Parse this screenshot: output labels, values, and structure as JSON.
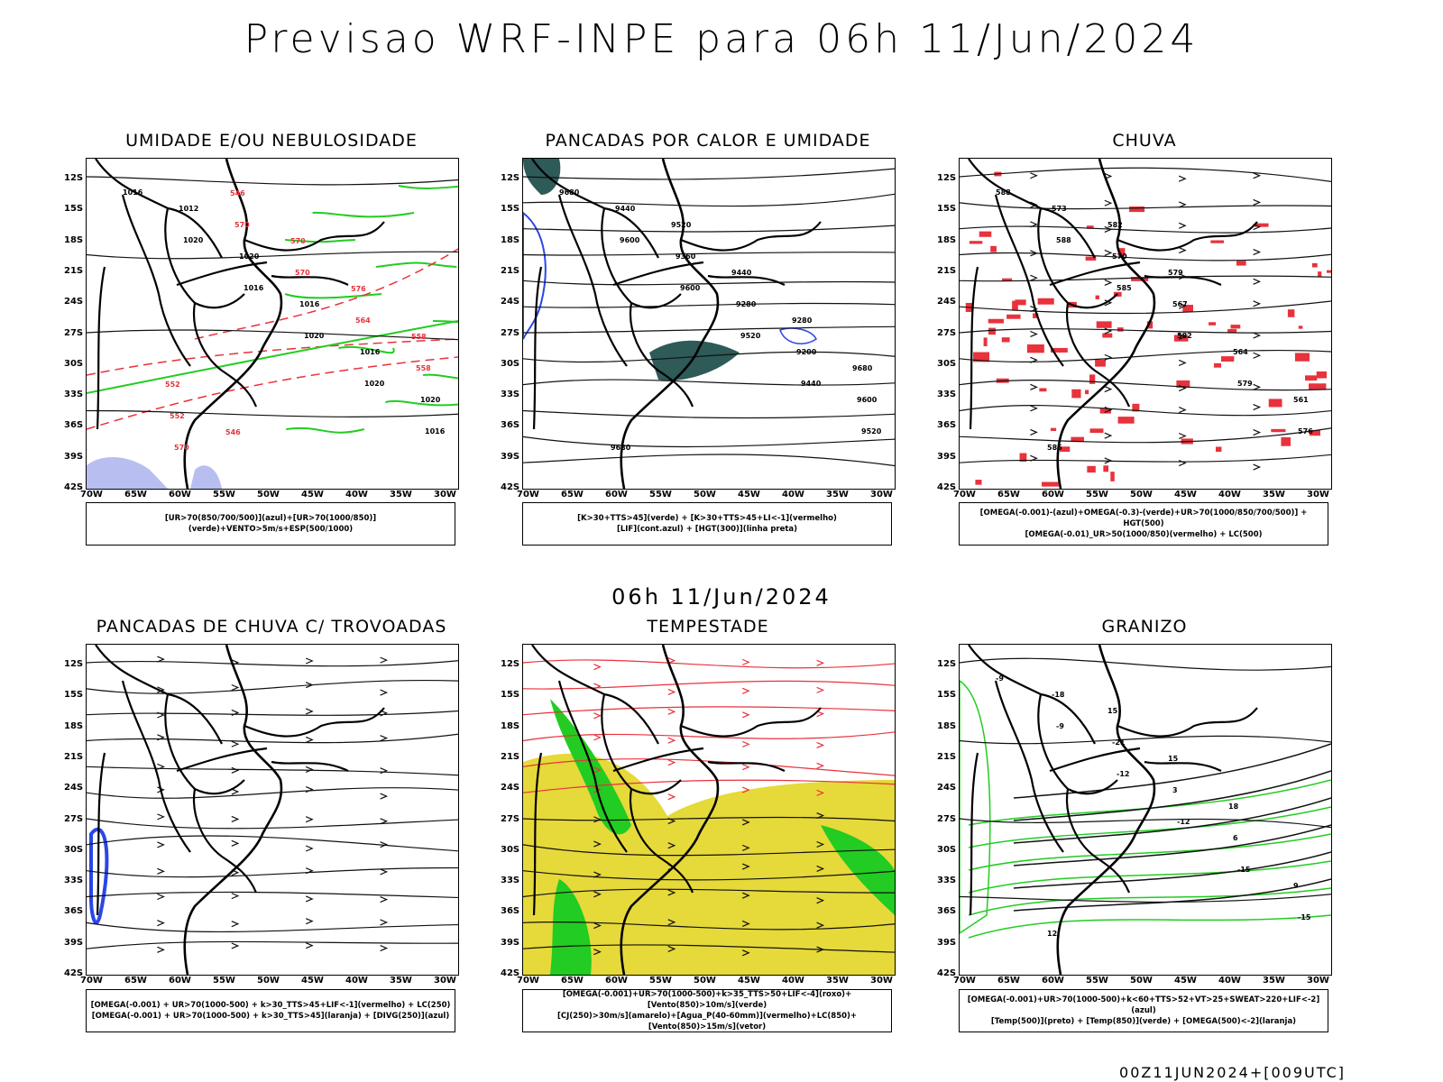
{
  "header": {
    "title": "Previsao WRF-INPE  para 06h 11/Jun/2024"
  },
  "mid_date": "06h 11/Jun/2024",
  "footer": "00Z11JUN2024+[009UTC]",
  "axes": {
    "lat_labels": [
      "12S",
      "15S",
      "18S",
      "21S",
      "24S",
      "27S",
      "30S",
      "33S",
      "36S",
      "39S",
      "42S"
    ],
    "lon_labels": [
      "70W",
      "65W",
      "60W",
      "55W",
      "50W",
      "45W",
      "40W",
      "35W",
      "30W"
    ]
  },
  "colors": {
    "red": "#e8323c",
    "green": "#22cc22",
    "blue": "#2a46e8",
    "yellow": "#e6d93a",
    "teal": "#2e5a58",
    "orange": "#ff7a20",
    "lilac": "#b8bff0"
  },
  "panels": [
    {
      "id": "umidade",
      "title": "UMIDADE E/OU NEBULOSIDADE",
      "legend": [
        "[UR>70(850/700/500)](azul)+[UR>70(1000/850)](verde)+VENTO>5m/s+ESP(500/1000)"
      ],
      "contour_labels": [
        "1016",
        "1020",
        "1016",
        "1020",
        "1020",
        "1016",
        "1012",
        "1020",
        "1016",
        "1016",
        "1020",
        "570",
        "570",
        "570",
        "564",
        "558",
        "552",
        "546",
        "570",
        "576",
        "558",
        "552",
        "546"
      ]
    },
    {
      "id": "calor",
      "title": "PANCADAS POR CALOR E UMIDADE",
      "legend": [
        "[K>30+TTS>45](verde) + [K>30+TTS>45+LI<-1](vermelho)",
        "[LIF](cont.azul) + [HGT(300)](linha preta)"
      ],
      "contour_labels": [
        "9680",
        "9600",
        "9600",
        "9520",
        "9440",
        "9520",
        "9440",
        "9360",
        "9280",
        "9200",
        "9600",
        "9680",
        "9520",
        "9440",
        "9280",
        "9680"
      ]
    },
    {
      "id": "chuva",
      "title": "CHUVA",
      "legend": [
        "[OMEGA(-0.001)-(azul)+OMEGA(-0.3)-(verde)+UR>70(1000/850/700/500)] + HGT(500)",
        "[OMEGA(-0.01)_UR>50(1000/850)(vermelho) + LC(500)"
      ],
      "contour_labels": [
        "588",
        "588",
        "585",
        "582",
        "579",
        "576",
        "573",
        "570",
        "567",
        "564",
        "561",
        "585",
        "582",
        "579"
      ]
    },
    {
      "id": "trovoadas",
      "title": "PANCADAS DE CHUVA C/ TROVOADAS",
      "legend": [
        "[OMEGA(-0.001) + UR>70(1000-500) + k>30_TTS>45+LIF<-1](vermelho) + LC(250)",
        "[OMEGA(-0.001) + UR>70(1000-500) + k>30_TTS>45](laranja) + [DIVG(250)](azul)"
      ],
      "contour_labels": []
    },
    {
      "id": "tempestade",
      "title": "TEMPESTADE",
      "legend": [
        "[OMEGA(-0.001)+UR>70(1000-500)+k>35_TTS>50+LIF<-4](roxo)+[Vento(850)>10m/s](verde)",
        "[CJ(250)>30m/s](amarelo)+[Agua_P(40-60mm)](vermelho)+LC(850)+[Vento(850)>15m/s](vetor)"
      ],
      "contour_labels": []
    },
    {
      "id": "granizo",
      "title": "GRANIZO",
      "legend": [
        "[OMEGA(-0.001)+UR>70(1000-500)+k<60+TTS>52+VT>25+SWEAT>220+LIF<-2](azul)",
        "[Temp(500)](preto) + [Temp(850)](verde) + [OMEGA(500)<-2](laranja)"
      ],
      "contour_labels": [
        "-9",
        "-9",
        "-12",
        "-12",
        "-15",
        "-15",
        "-18",
        "-21",
        "3",
        "6",
        "9",
        "12",
        "15",
        "15",
        "18"
      ]
    }
  ]
}
